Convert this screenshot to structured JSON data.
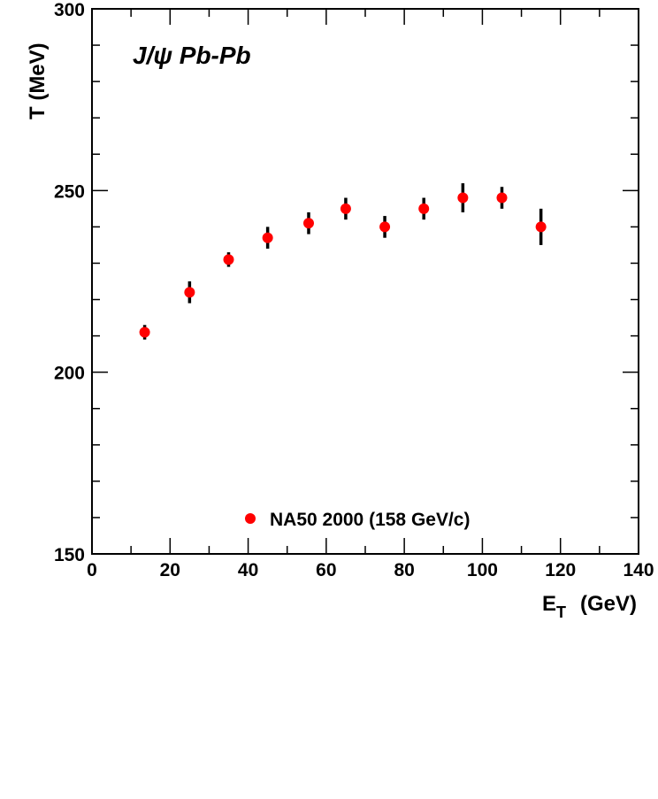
{
  "chart_data": {
    "type": "scatter",
    "title": "",
    "annotation": "J/ψ Pb-Pb",
    "xlabel": "E",
    "xlabel_sub": "T",
    "xlabel_unit": "(GeV)",
    "ylabel": "T  (MeV)",
    "xlim": [
      0,
      140
    ],
    "ylim": [
      150,
      300
    ],
    "x_ticks": [
      0,
      20,
      40,
      60,
      80,
      100,
      120,
      140
    ],
    "y_ticks": [
      150,
      200,
      250,
      300
    ],
    "grid": false,
    "legend_position": "bottom-center",
    "series": [
      {
        "name": "NA50 2000 (158 GeV/c)",
        "color": "#ff0000",
        "error_color": "#000000",
        "x": [
          13.5,
          25,
          35,
          45,
          55.5,
          65,
          75,
          85,
          95,
          105,
          115
        ],
        "y": [
          211,
          222,
          231,
          237,
          241,
          245,
          240,
          245,
          248,
          248,
          240
        ],
        "yerr": [
          2,
          3,
          2,
          3,
          3,
          3,
          3,
          3,
          4,
          3,
          5
        ]
      }
    ]
  }
}
